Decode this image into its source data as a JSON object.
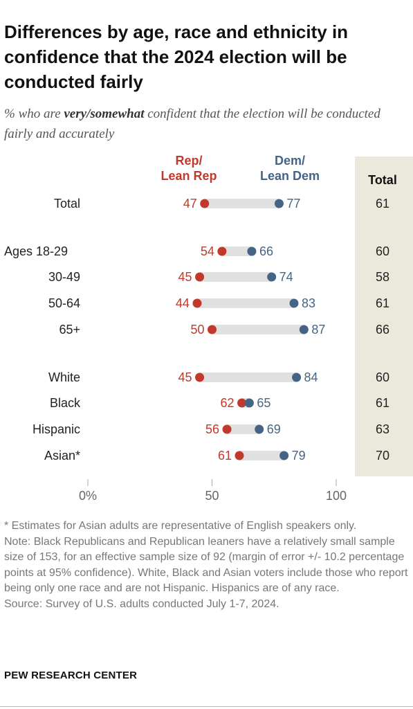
{
  "title": "Differences by age, race and ethnicity in confidence that the 2024 election will be conducted fairly",
  "subtitle": {
    "prefix": "% who are ",
    "emphasis": "very/somewhat",
    "suffix": " confident that the election will be conducted fairly and accurately"
  },
  "footnote": "* Estimates for Asian adults are representative of English speakers only.",
  "note": "Note: Black Republicans and Republican leaners have a relatively small sample size of 153, for an effective sample size of 92 (margin of error +/- 10.2 percentage points at 95% confidence). White, Black and Asian voters include those who report being only one race and are not Hispanic. Hispanics are of any race.",
  "source": "Source: Survey of U.S. adults conducted July 1-7, 2024.",
  "org": "PEW RESEARCH CENTER",
  "colors": {
    "rep": "#c0392b",
    "dem": "#456485",
    "bar": "#e0e0e0",
    "total_bg": "#ebe8dc"
  },
  "chart_data": {
    "type": "dot",
    "xlim": [
      0,
      100
    ],
    "xticks": [
      {
        "value": 0,
        "label": "0%"
      },
      {
        "value": 50,
        "label": "50"
      },
      {
        "value": 100,
        "label": "100"
      }
    ],
    "series_labels": {
      "rep": "Rep/\nLean Rep",
      "dem": "Dem/\nLean Dem",
      "total": "Total"
    },
    "rows": [
      {
        "label": "Total",
        "rep": 47,
        "dem": 77,
        "total": 61
      },
      {
        "label": "Ages 18-29",
        "rep": 54,
        "dem": 66,
        "total": 60
      },
      {
        "label": "30-49",
        "rep": 45,
        "dem": 74,
        "total": 58
      },
      {
        "label": "50-64",
        "rep": 44,
        "dem": 83,
        "total": 61
      },
      {
        "label": "65+",
        "rep": 50,
        "dem": 87,
        "total": 66
      },
      {
        "label": "White",
        "rep": 45,
        "dem": 84,
        "total": 60
      },
      {
        "label": "Black",
        "rep": 62,
        "dem": 65,
        "total": 61
      },
      {
        "label": "Hispanic",
        "rep": 56,
        "dem": 69,
        "total": 63
      },
      {
        "label": "Asian*",
        "rep": 61,
        "dem": 79,
        "total": 70
      }
    ]
  }
}
